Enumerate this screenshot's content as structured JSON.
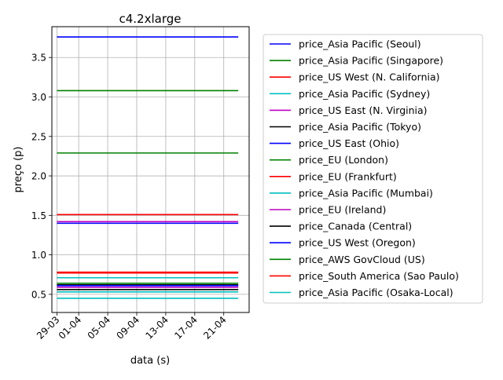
{
  "chart_data": {
    "type": "line",
    "title": "c4.2xlarge",
    "xlabel": "data (s)",
    "ylabel": "preço (p)",
    "x_ticks": [
      "29-03",
      "01-04",
      "05-04",
      "09-04",
      "13-04",
      "17-04",
      "21-04"
    ],
    "x_range": [
      "2021-03-29",
      "2021-04-24"
    ],
    "ylim": [
      0.27,
      3.89
    ],
    "y_ticks": [
      0.5,
      1.0,
      1.5,
      2.0,
      2.5,
      3.0,
      3.5
    ],
    "grid": true,
    "legend_placement": "outside-right",
    "series": [
      {
        "name": "price_Asia Pacific (Seoul)",
        "color": "#0000ff",
        "x": [
          "2021-03-29",
          "2021-04-23"
        ],
        "values": [
          3.76,
          3.76
        ]
      },
      {
        "name": "price_Asia Pacific (Singapore)",
        "color": "#008000",
        "x": [
          "2021-03-29",
          "2021-04-23"
        ],
        "values": [
          2.29,
          2.29
        ]
      },
      {
        "name": "price_US West (N. California)",
        "color": "#ff0000",
        "x": [
          "2021-03-29",
          "2021-04-23"
        ],
        "values": [
          1.51,
          1.51
        ]
      },
      {
        "name": "price_Asia Pacific (Sydney)",
        "color": "#00bfbf",
        "x": [
          "2021-03-29",
          "2021-04-23"
        ],
        "values": [
          0.71,
          0.71
        ]
      },
      {
        "name": "price_US East (N. Virginia)",
        "color": "#bf00bf",
        "x": [
          "2021-03-29",
          "2021-04-23"
        ],
        "values": [
          1.42,
          1.42
        ]
      },
      {
        "name": "price_Asia Pacific (Tokyo)",
        "color": "#000000",
        "x": [
          "2021-03-29",
          "2021-04-23"
        ],
        "values": [
          0.62,
          0.62
        ]
      },
      {
        "name": "price_US East (Ohio)",
        "color": "#0000ff",
        "x": [
          "2021-03-29",
          "2021-04-23"
        ],
        "values": [
          1.4,
          1.4
        ]
      },
      {
        "name": "price_EU (London)",
        "color": "#008000",
        "x": [
          "2021-03-29",
          "2021-04-23"
        ],
        "values": [
          3.08,
          3.08
        ]
      },
      {
        "name": "price_EU (Frankfurt)",
        "color": "#ff0000",
        "x": [
          "2021-03-29",
          "2021-04-23"
        ],
        "values": [
          0.78,
          0.78
        ]
      },
      {
        "name": "price_Asia Pacific (Mumbai)",
        "color": "#00bfbf",
        "x": [
          "2021-03-29",
          "2021-04-23"
        ],
        "values": [
          0.53,
          0.53
        ]
      },
      {
        "name": "price_EU (Ireland)",
        "color": "#bf00bf",
        "x": [
          "2021-03-29",
          "2021-04-23"
        ],
        "values": [
          0.59,
          0.59
        ]
      },
      {
        "name": "price_Canada (Central)",
        "color": "#000000",
        "x": [
          "2021-03-29",
          "2021-04-23"
        ],
        "values": [
          0.56,
          0.56
        ]
      },
      {
        "name": "price_US West (Oregon)",
        "color": "#0000ff",
        "x": [
          "2021-03-29",
          "2021-04-23"
        ],
        "values": [
          0.61,
          0.61
        ]
      },
      {
        "name": "price_AWS GovCloud (US)",
        "color": "#008000",
        "x": [
          "2021-03-29",
          "2021-04-23"
        ],
        "values": [
          0.64,
          0.64
        ]
      },
      {
        "name": "price_South America (Sao Paulo)",
        "color": "#ff0000",
        "x": [
          "2021-03-29",
          "2021-04-23"
        ],
        "values": [
          0.77,
          0.77
        ]
      },
      {
        "name": "price_Asia Pacific (Osaka-Local)",
        "color": "#00bfbf",
        "x": [
          "2021-03-29",
          "2021-04-23"
        ],
        "values": [
          0.45,
          0.45
        ]
      }
    ]
  }
}
